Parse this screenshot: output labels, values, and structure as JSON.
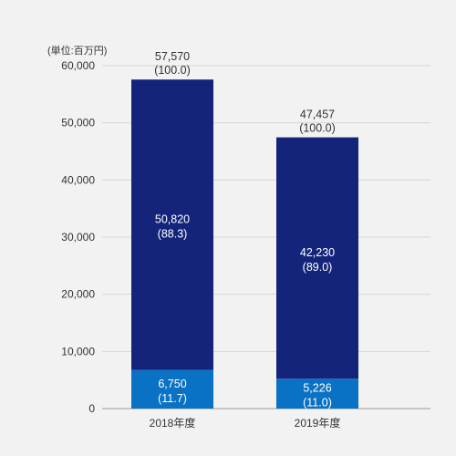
{
  "chart_data": {
    "type": "bar",
    "stacked": true,
    "unit_label": "(単位:百万円)",
    "categories": [
      "2018年度",
      "2019年度"
    ],
    "ylim": [
      0,
      60000
    ],
    "yticks": [
      "0",
      "10,000",
      "20,000",
      "30,000",
      "40,000",
      "50,000",
      "60,000"
    ],
    "ytick_values": [
      0,
      10000,
      20000,
      30000,
      40000,
      50000,
      60000
    ],
    "grid": true,
    "series": [
      {
        "color": "#0a72c4",
        "values": [
          6750,
          5226
        ],
        "value_labels": [
          "6,750",
          "5,226"
        ],
        "pct_labels": [
          "(11.7)",
          "(11.0)"
        ]
      },
      {
        "color": "#14247a",
        "values": [
          50820,
          42230
        ],
        "value_labels": [
          "50,820",
          "42,230"
        ],
        "pct_labels": [
          "(88.3)",
          "(89.0)"
        ]
      }
    ],
    "totals": {
      "values": [
        57570,
        47457
      ],
      "value_labels": [
        "57,570",
        "47,457"
      ],
      "pct_labels": [
        "(100.0)",
        "(100.0)"
      ]
    }
  }
}
